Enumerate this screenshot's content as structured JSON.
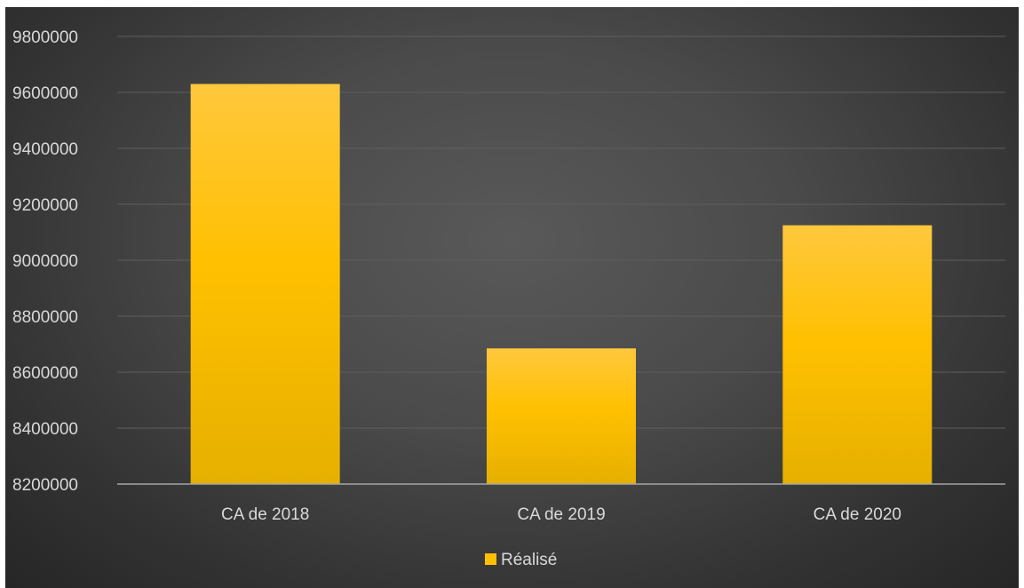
{
  "chart_data": {
    "type": "bar",
    "categories": [
      "CA de 2018",
      "CA de 2019",
      "CA de 2020"
    ],
    "series": [
      {
        "name": "Réalisé",
        "values": [
          9630000,
          8685000,
          9125000
        ]
      }
    ],
    "ylim": [
      8200000,
      9800000
    ],
    "yticks": [
      8200000,
      8400000,
      8600000,
      8800000,
      9000000,
      9200000,
      9400000,
      9600000,
      9800000
    ],
    "grid": true,
    "legend_position": "bottom",
    "colors": {
      "bar_top": "#ffc83d",
      "bar_mid": "#ffc000",
      "bar_bottom": "#e6b000",
      "gridline": "#5e5e5e",
      "axis": "#a6a6a6",
      "text": "#d9d9d9"
    }
  }
}
